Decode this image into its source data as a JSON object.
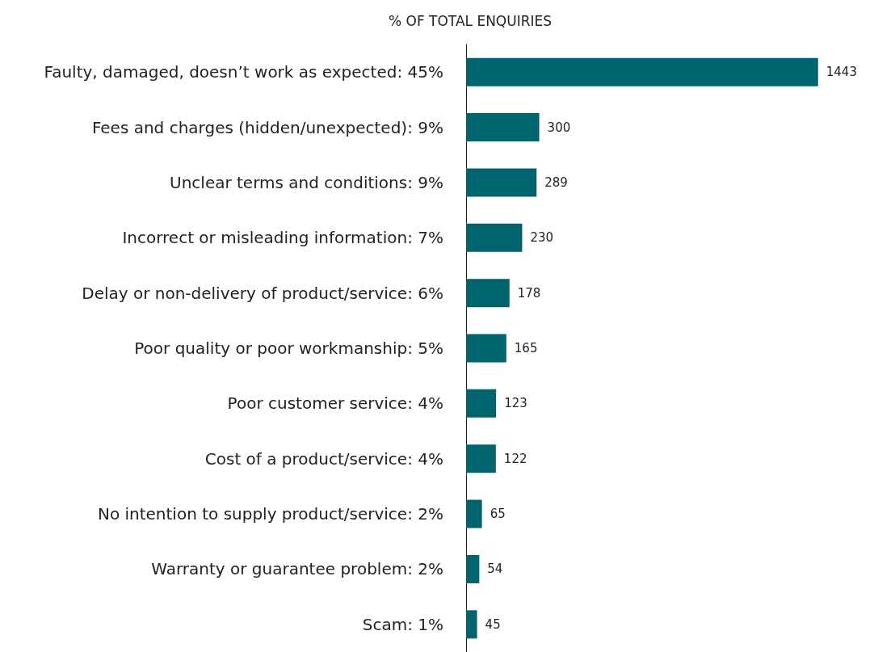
{
  "chart_data": {
    "type": "bar",
    "orientation": "horizontal",
    "title": "% OF TOTAL ENQUIRIES",
    "categories": [
      "Faulty, damaged, doesn’t work as expected: 45%",
      "Fees and charges (hidden/unexpected): 9%",
      "Unclear terms and conditions: 9%",
      "Incorrect or misleading information: 7%",
      "Delay or non-delivery of product/service: 6%",
      "Poor quality or poor workmanship: 5%",
      "Poor customer service: 4%",
      "Cost of a product/service: 4%",
      "No intention to supply product/service: 2%",
      "Warranty or guarantee problem: 2%",
      "Scam: 1%"
    ],
    "values": [
      1443,
      300,
      289,
      230,
      178,
      165,
      123,
      122,
      65,
      54,
      45
    ],
    "color": "#00646e",
    "data_labels": true
  }
}
